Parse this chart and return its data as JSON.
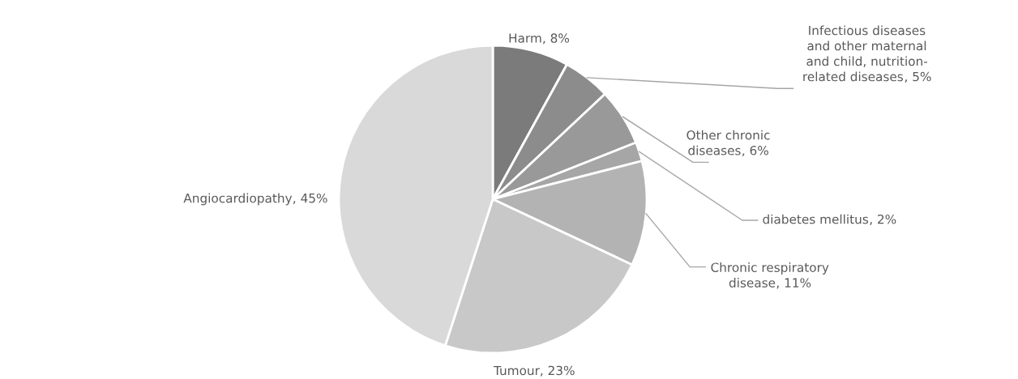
{
  "chart_data": {
    "type": "pie",
    "categories": [
      "Harm",
      "Infectious diseases and other maternal and child, nutrition-related diseases",
      "Other chronic diseases",
      "diabetes mellitus",
      "Chronic respiratory disease",
      "Tumour",
      "Angiocardiopathy"
    ],
    "values": [
      8,
      5,
      6,
      2,
      11,
      23,
      45
    ],
    "colors": [
      "#7b7b7b",
      "#8c8c8c",
      "#999999",
      "#a6a6a6",
      "#b3b3b3",
      "#c8c8c8",
      "#d9d9d9"
    ],
    "value_labels": [
      ", 8%",
      ", 5%",
      ", 6%",
      ", 2%",
      ", 11%",
      ", 23%",
      ", 45%"
    ]
  }
}
